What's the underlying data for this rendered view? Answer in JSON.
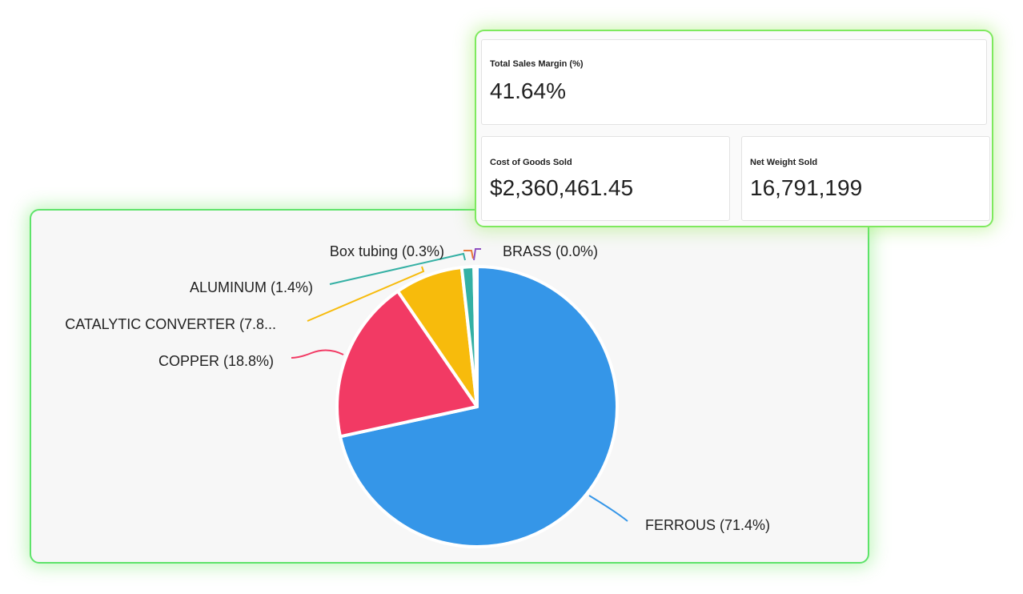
{
  "kpis": {
    "total_sales_margin": {
      "label": "Total Sales Margin (%)",
      "value": "41.64%"
    },
    "cost_of_goods_sold": {
      "label": "Cost of Goods Sold",
      "value": "$2,360,461.45"
    },
    "net_weight_sold": {
      "label": "Net Weight Sold",
      "value": "16,791,199"
    }
  },
  "chart_data": {
    "type": "pie",
    "start_angle_deg": 0,
    "direction": "clockwise",
    "slices": [
      {
        "label": "FERROUS (71.4%)",
        "value": 71.4,
        "color": "#3596e8"
      },
      {
        "label": "COPPER (18.8%)",
        "value": 18.8,
        "color": "#f23a64"
      },
      {
        "label": "CATALYTIC CONVERTER (7.8...",
        "value": 7.8,
        "color": "#f7bb0c"
      },
      {
        "label": "ALUMINUM (1.4%)",
        "value": 1.4,
        "color": "#34b0a4"
      },
      {
        "label": "Box tubing (0.3%)",
        "value": 0.3,
        "color": "#e8793a"
      },
      {
        "label": "BRASS (0.0%)",
        "value": 0.05,
        "color": "#8e4fc0"
      }
    ]
  }
}
